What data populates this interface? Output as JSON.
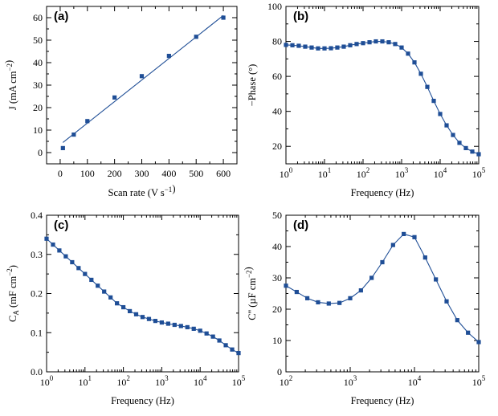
{
  "chart_data": [
    {
      "panel": "(a)",
      "type": "scatter",
      "xlabel": "Scan rate (V s⁻¹)",
      "ylabel": "J (mA cm⁻²)",
      "xscale": "linear",
      "xlim": [
        -50,
        650
      ],
      "ylim": [
        -5,
        65
      ],
      "xticks": [
        0,
        100,
        200,
        300,
        400,
        500,
        600
      ],
      "yticks": [
        0,
        10,
        20,
        30,
        40,
        50,
        60
      ],
      "x": [
        10,
        50,
        100,
        200,
        300,
        400,
        500,
        600
      ],
      "y": [
        2,
        8,
        14,
        24.5,
        34,
        43,
        51.5,
        60
      ],
      "fit_line": {
        "x": [
          10,
          600
        ],
        "y": [
          4.5,
          61
        ]
      },
      "grid": false
    },
    {
      "panel": "(b)",
      "type": "line",
      "xlabel": "Frequency (Hz)",
      "ylabel": "−Phase (°)",
      "xscale": "log",
      "xlim": [
        1,
        100000
      ],
      "ylim": [
        10,
        100
      ],
      "xticks": [
        "10^0",
        "10^1",
        "10^2",
        "10^3",
        "10^4",
        "10^5"
      ],
      "yticks": [
        20,
        40,
        60,
        80,
        100
      ],
      "x": [
        1,
        1.47,
        2.15,
        3.16,
        4.64,
        6.81,
        10,
        14.7,
        21.5,
        31.6,
        46.4,
        68.1,
        100,
        147,
        215,
        316,
        464,
        681,
        1000,
        1468,
        2154,
        3162,
        4642,
        6813,
        10000,
        14678,
        21544,
        31623,
        46416,
        68129,
        100000
      ],
      "y": [
        78,
        77.8,
        77.5,
        77,
        76.5,
        76,
        76,
        76.1,
        76.5,
        77,
        77.8,
        78.5,
        79,
        79.5,
        80,
        80,
        79.5,
        78.5,
        76.5,
        73,
        68,
        61.5,
        54,
        46,
        38.5,
        32,
        26.5,
        22,
        19,
        17,
        15.5
      ],
      "grid": false
    },
    {
      "panel": "(c)",
      "type": "line",
      "xlabel": "Frequency (Hz)",
      "ylabel": "C_A (mF cm⁻²)",
      "ylabel_main": "C",
      "ylabel_sub": "A",
      "ylabel_rest": " (mF cm⁻²)",
      "xscale": "log",
      "xlim": [
        1,
        100000
      ],
      "ylim": [
        0,
        0.4
      ],
      "xticks": [
        "10^0",
        "10^1",
        "10^2",
        "10^3",
        "10^4",
        "10^5"
      ],
      "yticks": [
        "0.0",
        "0.1",
        "0.2",
        "0.3",
        "0.4"
      ],
      "x": [
        1,
        1.47,
        2.15,
        3.16,
        4.64,
        6.81,
        10,
        14.7,
        21.5,
        31.6,
        46.4,
        68.1,
        100,
        147,
        215,
        316,
        464,
        681,
        1000,
        1468,
        2154,
        3162,
        4642,
        6813,
        10000,
        14678,
        21544,
        31623,
        46416,
        68129,
        100000
      ],
      "y": [
        0.34,
        0.325,
        0.31,
        0.295,
        0.28,
        0.265,
        0.25,
        0.235,
        0.22,
        0.205,
        0.19,
        0.175,
        0.165,
        0.155,
        0.147,
        0.14,
        0.135,
        0.13,
        0.126,
        0.123,
        0.12,
        0.117,
        0.114,
        0.11,
        0.105,
        0.098,
        0.09,
        0.08,
        0.068,
        0.057,
        0.048
      ],
      "grid": false
    },
    {
      "panel": "(d)",
      "type": "line",
      "xlabel": "Frequency (Hz)",
      "ylabel": "C'' (µF cm⁻²)",
      "xscale": "log",
      "xlim": [
        100,
        100000
      ],
      "ylim": [
        0,
        50
      ],
      "xticks": [
        "10^2",
        "10^3",
        "10^4",
        "10^5"
      ],
      "yticks": [
        0,
        10,
        20,
        30,
        40,
        50
      ],
      "x": [
        100,
        147,
        215,
        316,
        464,
        681,
        1000,
        1468,
        2154,
        3162,
        4642,
        6813,
        10000,
        14678,
        21544,
        31623,
        46416,
        68129,
        100000
      ],
      "y": [
        27.5,
        25.5,
        23.5,
        22.2,
        21.8,
        22,
        23.5,
        26,
        30,
        35,
        40.5,
        44,
        43,
        36.5,
        29.5,
        22.5,
        16.5,
        12.5,
        9.5
      ],
      "grid": false
    }
  ],
  "colors": {
    "series": "#1f4e96",
    "axes": "#000000"
  }
}
